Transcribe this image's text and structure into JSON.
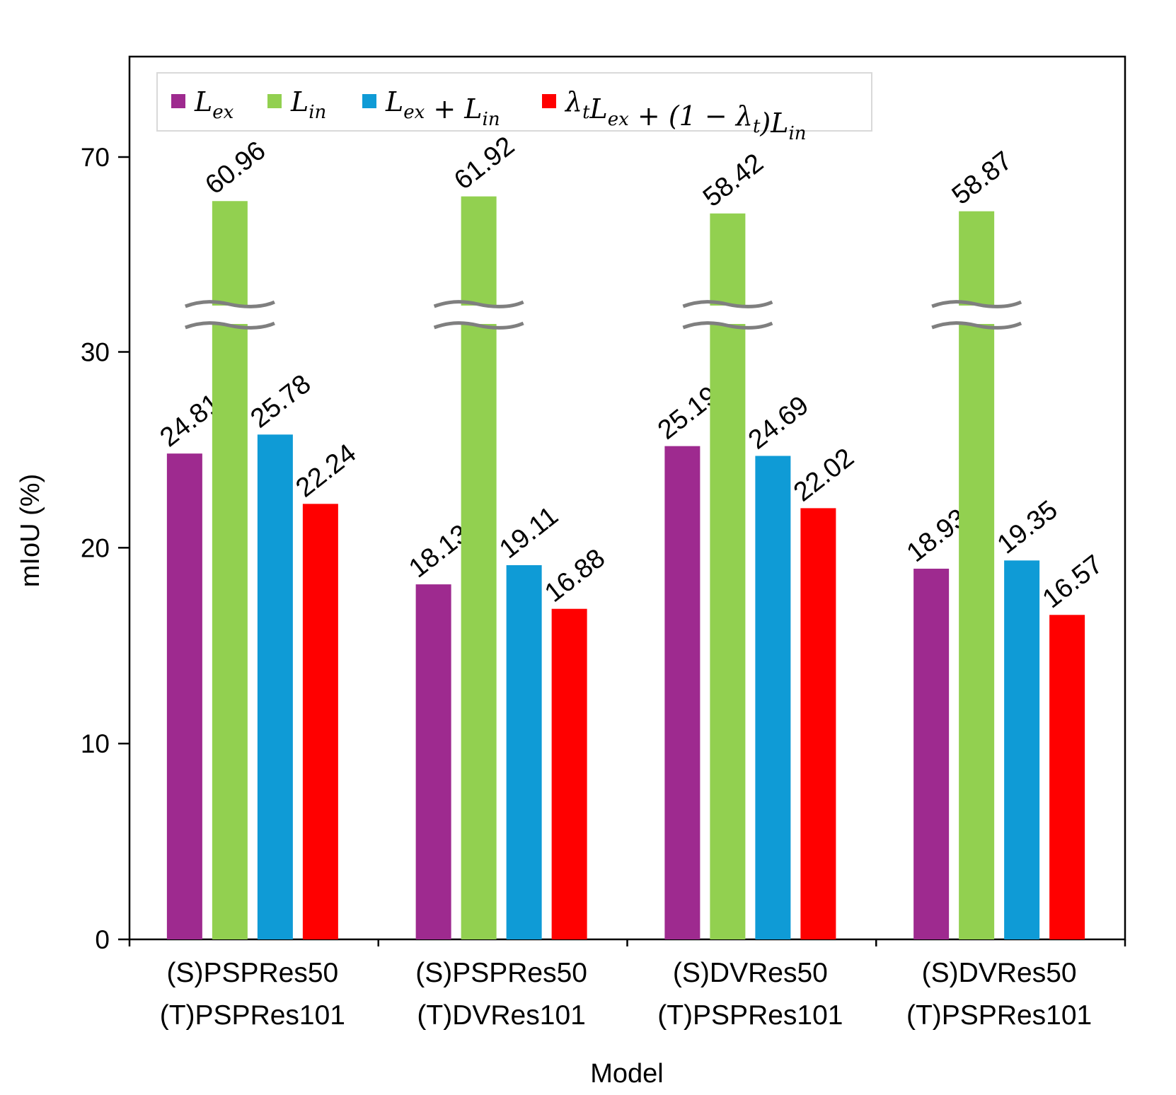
{
  "chart_data": {
    "type": "bar",
    "title": "",
    "xlabel": "Model",
    "ylabel": "mIoU (%)",
    "y_ticks": [
      "0",
      "10",
      "20",
      "30",
      "70"
    ],
    "axis_break": {
      "from": 30,
      "to": 70,
      "note": "broken y-axis; ticks 0-30 linear, 70 shown above break"
    },
    "categories": [
      {
        "line1": "(S)PSPRes50",
        "line2": "(T)PSPRes101"
      },
      {
        "line1": "(S)PSPRes50",
        "line2": "(T)DVRes101"
      },
      {
        "line1": "(S)DVRes50",
        "line2": "(T)PSPRes101"
      },
      {
        "line1": "(S)DVRes50",
        "line2": "(T)PSPRes101"
      }
    ],
    "series": [
      {
        "name": "L_ex",
        "color": "#9e2a8f",
        "values": [
          24.81,
          18.13,
          25.19,
          18.93
        ],
        "labels": [
          "24.81",
          "18.13",
          "25.19",
          "18.93"
        ]
      },
      {
        "name": "L_in",
        "color": "#92d050",
        "values": [
          60.96,
          61.92,
          58.42,
          58.87
        ],
        "labels": [
          "60.96",
          "61.92",
          "58.42",
          "58.87"
        ]
      },
      {
        "name": "L_ex + L_in",
        "color": "#0f9bd6",
        "values": [
          25.78,
          19.11,
          24.69,
          19.35
        ],
        "labels": [
          "25.78",
          "19.11",
          "24.69",
          "19.35"
        ]
      },
      {
        "name": "λ_t L_ex + (1 − λ_t) L_in",
        "color": "#ff0000",
        "values": [
          22.24,
          16.88,
          22.02,
          16.57
        ],
        "labels": [
          "22.24",
          "16.88",
          "22.02",
          "16.57"
        ]
      }
    ],
    "legend": {
      "placement": "top-left",
      "entries": [
        {
          "parts": [
            [
              "L",
              ""
            ],
            [
              "ex",
              "sub"
            ]
          ]
        },
        {
          "parts": [
            [
              "L",
              ""
            ],
            [
              "in",
              "sub"
            ]
          ]
        },
        {
          "parts": [
            [
              "L",
              ""
            ],
            [
              "ex",
              "sub"
            ],
            [
              " + L",
              ""
            ],
            [
              "in",
              "sub"
            ]
          ]
        },
        {
          "parts": [
            [
              "λ",
              ""
            ],
            [
              "t",
              "sub"
            ],
            [
              "L",
              ""
            ],
            [
              "ex",
              "sub"
            ],
            [
              " + (1 − λ",
              ""
            ],
            [
              "t",
              "sub"
            ],
            [
              ")L",
              ""
            ],
            [
              "in",
              "sub"
            ]
          ]
        }
      ]
    },
    "break_color": "#7f7f7f"
  }
}
